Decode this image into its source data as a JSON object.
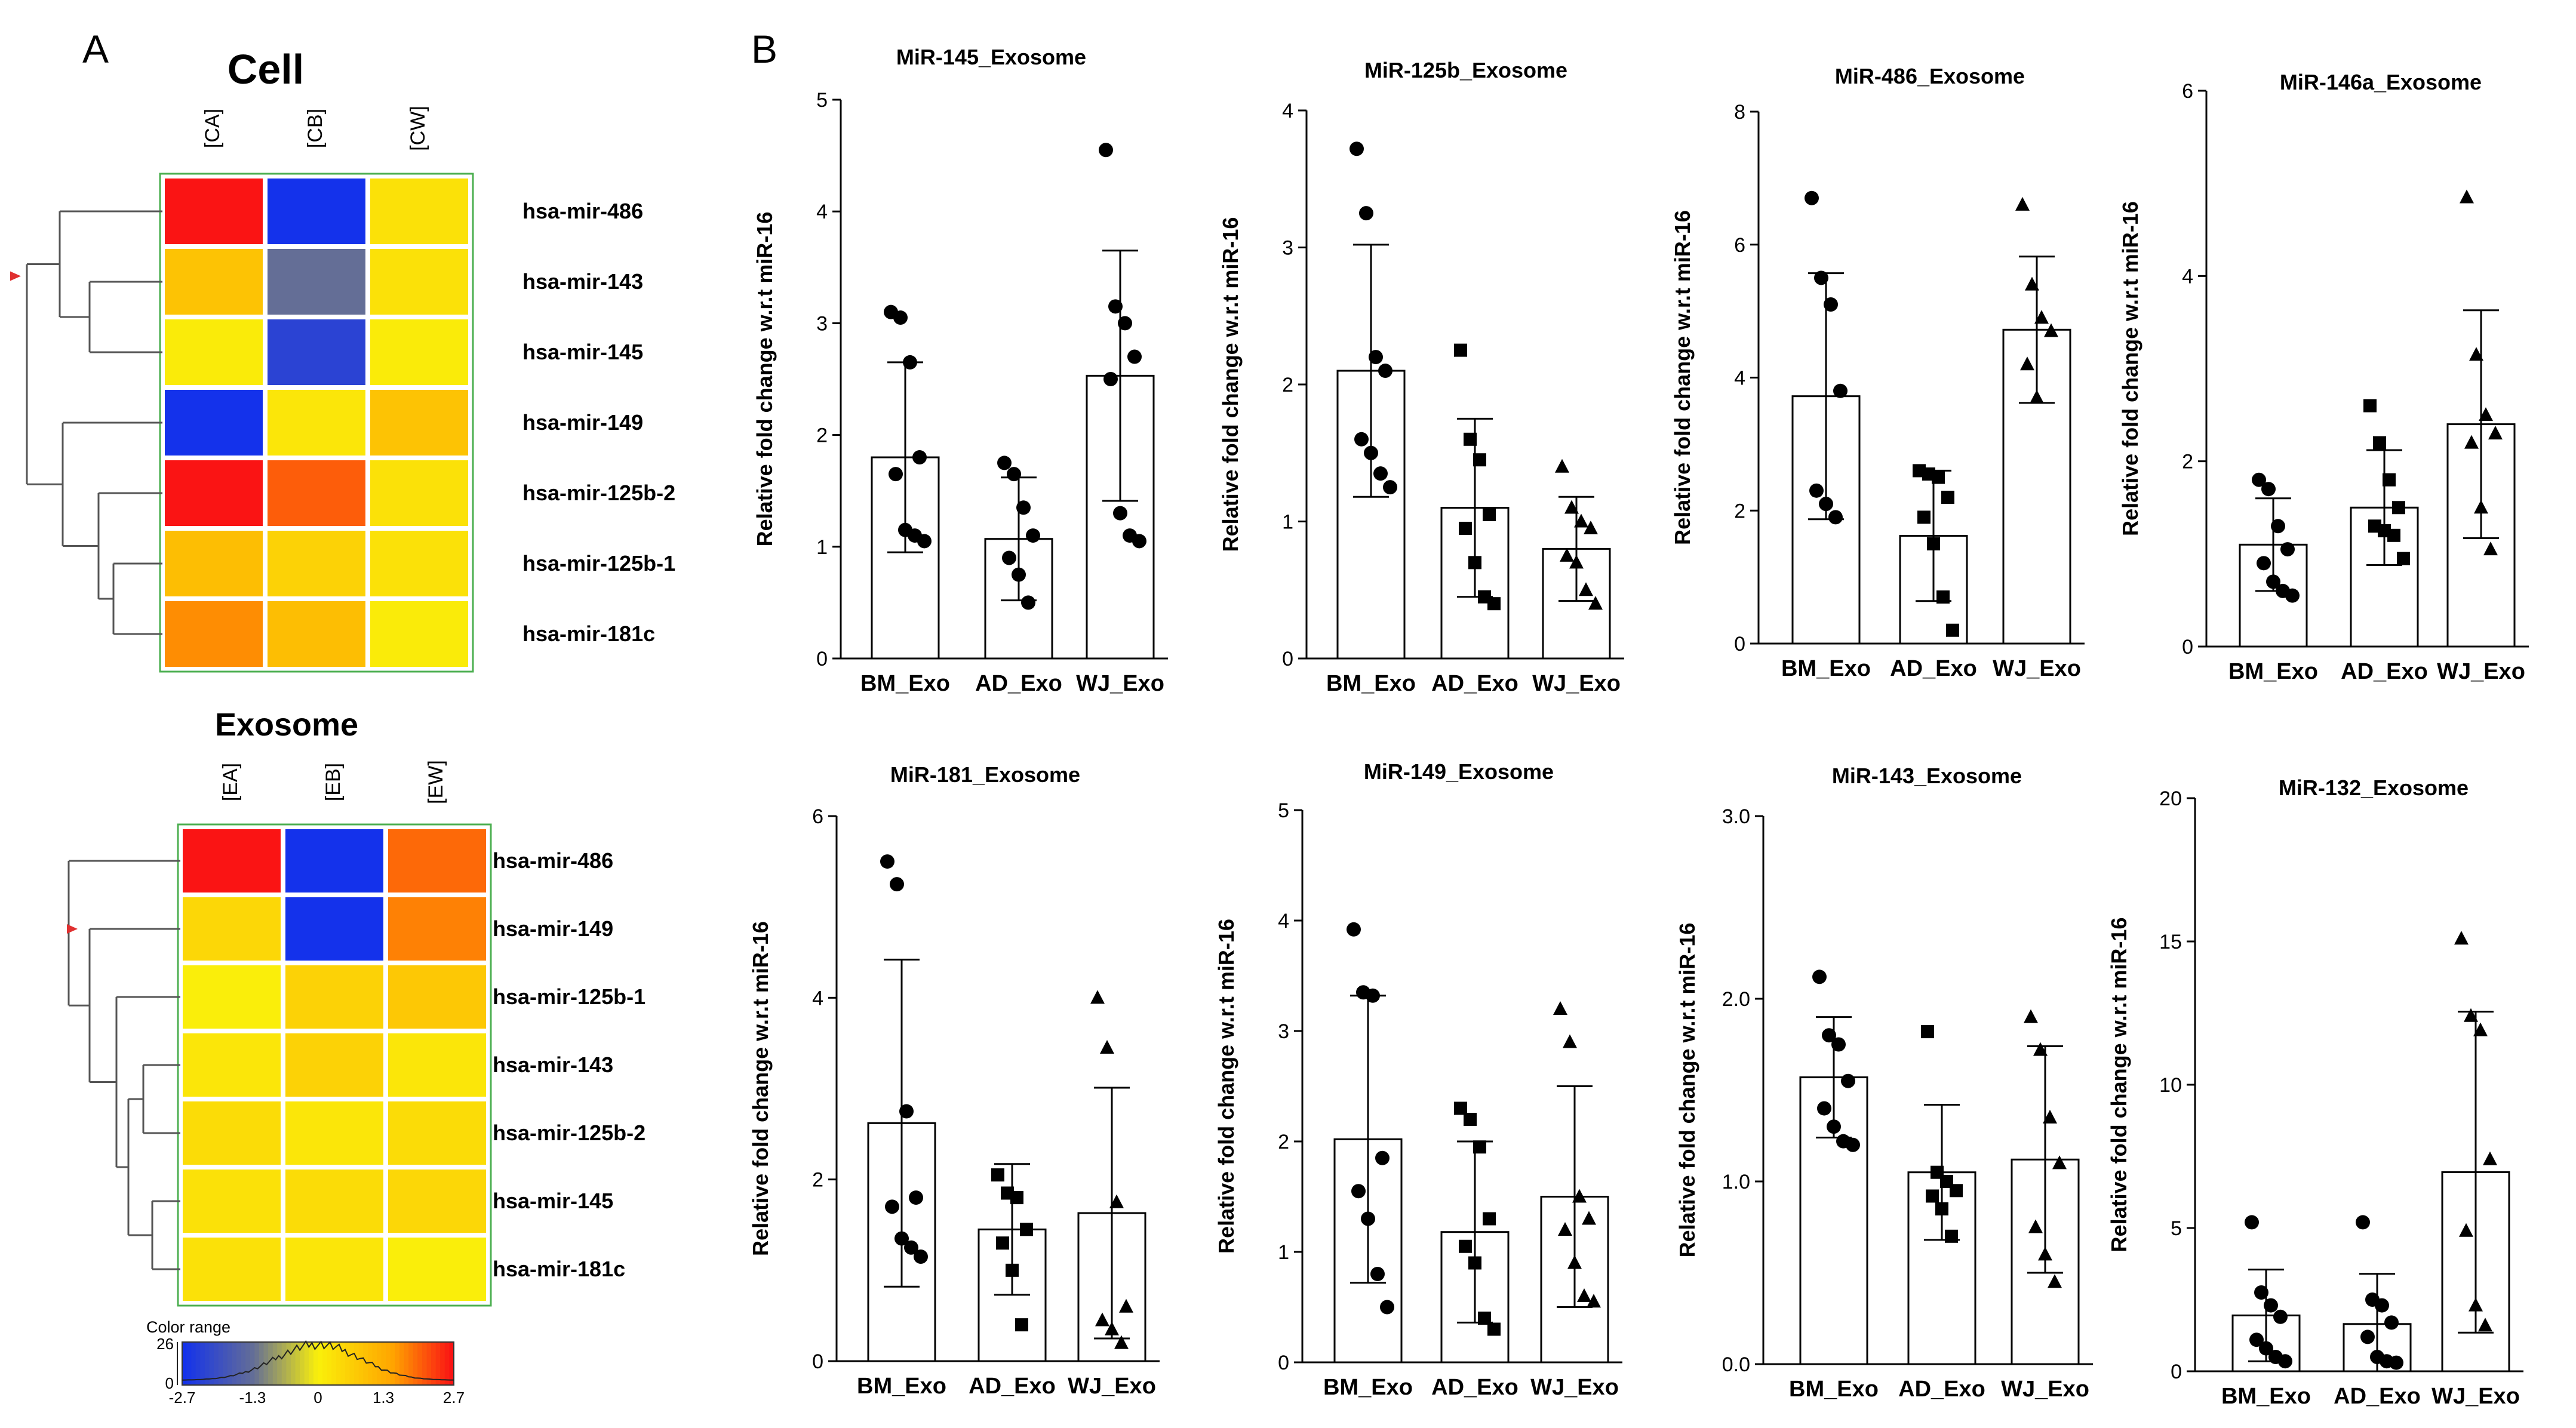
{
  "panel_labels": {
    "a": "A",
    "b": "B"
  },
  "chart_data": [
    {
      "type": "heatmap",
      "title": "Cell",
      "columns": [
        "[CA]",
        "[CB]",
        "[CW]"
      ],
      "rows": [
        "hsa-mir-486",
        "hsa-mir-143",
        "hsa-mir-145",
        "hsa-mir-149",
        "hsa-mir-125b-2",
        "hsa-mir-125b-1",
        "hsa-mir-181c"
      ],
      "values": [
        [
          2.7,
          -2.7,
          0.3
        ],
        [
          0.9,
          -1.3,
          0.3
        ],
        [
          0.1,
          -2.3,
          0.1
        ],
        [
          -2.7,
          0.2,
          0.9
        ],
        [
          2.7,
          2.1,
          0.3
        ],
        [
          1.0,
          0.6,
          0.3
        ],
        [
          1.7,
          1.0,
          0.1
        ]
      ]
    },
    {
      "type": "heatmap",
      "title": "Exosome",
      "columns": [
        "[EA]",
        "[EB]",
        "[EW]"
      ],
      "rows": [
        "hsa-mir-486",
        "hsa-mir-149",
        "hsa-mir-125b-1",
        "hsa-mir-143",
        "hsa-mir-125b-2",
        "hsa-mir-145",
        "hsa-mir-181c"
      ],
      "values": [
        [
          2.7,
          -2.7,
          2.0
        ],
        [
          0.5,
          -2.7,
          1.8
        ],
        [
          0.05,
          0.6,
          0.8
        ],
        [
          0.2,
          0.6,
          0.2
        ],
        [
          0.4,
          0.2,
          0.4
        ],
        [
          0.3,
          0.4,
          0.5
        ],
        [
          0.3,
          0.2,
          0.05
        ]
      ]
    },
    {
      "type": "colorbar",
      "title": "Color range",
      "ymax_label": "26",
      "ymin_label": "0",
      "ticks": [
        "-2.7",
        "-1.3",
        "0",
        "1.3",
        "2.7"
      ],
      "range": [
        -2.7,
        2.7
      ]
    },
    {
      "type": "bar",
      "title": "MiR-145_Exosome",
      "ylabel": "Relative fold change w.r.t miR-16",
      "categories": [
        "BM_Exo",
        "AD_Exo",
        "WJ_Exo"
      ],
      "ylim": [
        0,
        5
      ],
      "yticks": [
        0,
        1,
        2,
        3,
        4,
        5
      ],
      "ytick_labels": [
        "0",
        "1",
        "2",
        "3",
        "4",
        "5"
      ],
      "marker": [
        "circle",
        "circle",
        "circle"
      ],
      "means": [
        1.8,
        1.07,
        2.53
      ],
      "sd": [
        0.85,
        0.55,
        1.12
      ],
      "points": [
        [
          3.1,
          3.05,
          2.65,
          1.8,
          1.65,
          1.15,
          1.1,
          1.05
        ],
        [
          1.75,
          1.65,
          1.35,
          1.1,
          0.9,
          0.75,
          0.5
        ],
        [
          4.55,
          3.15,
          3.0,
          2.7,
          2.5,
          1.3,
          1.1,
          1.05
        ]
      ]
    },
    {
      "type": "bar",
      "title": "MiR-125b_Exosome",
      "ylabel": "Relative fold change w.r.t miR-16",
      "categories": [
        "BM_Exo",
        "AD_Exo",
        "WJ_Exo"
      ],
      "ylim": [
        0,
        4
      ],
      "yticks": [
        0,
        1,
        2,
        3,
        4
      ],
      "ytick_labels": [
        "0",
        "1",
        "2",
        "3",
        "4"
      ],
      "marker": [
        "circle",
        "square",
        "triangle"
      ],
      "means": [
        2.1,
        1.1,
        0.8
      ],
      "sd": [
        0.92,
        0.65,
        0.38
      ],
      "points": [
        [
          3.72,
          3.25,
          2.2,
          2.1,
          1.6,
          1.5,
          1.35,
          1.25
        ],
        [
          2.25,
          1.6,
          1.45,
          1.05,
          0.95,
          0.7,
          0.45,
          0.4
        ],
        [
          1.4,
          1.1,
          1.0,
          0.95,
          0.75,
          0.7,
          0.5,
          0.4
        ]
      ]
    },
    {
      "type": "bar",
      "title": "MiR-486_Exosome",
      "ylabel": "Relative fold change w.r.t miR-16",
      "categories": [
        "BM_Exo",
        "AD_Exo",
        "WJ_Exo"
      ],
      "ylim": [
        0,
        8
      ],
      "yticks": [
        0,
        2,
        4,
        6,
        8
      ],
      "ytick_labels": [
        "0",
        "2",
        "4",
        "6",
        "8"
      ],
      "marker": [
        "circle",
        "square",
        "triangle"
      ],
      "means": [
        3.72,
        1.62,
        4.72
      ],
      "sd": [
        1.85,
        0.98,
        1.1
      ],
      "points": [
        [
          6.7,
          5.5,
          5.1,
          3.8,
          2.3,
          2.1,
          1.9
        ],
        [
          2.6,
          2.55,
          2.5,
          2.2,
          1.9,
          1.5,
          0.7,
          0.2
        ],
        [
          6.6,
          5.4,
          4.9,
          4.7,
          4.2,
          3.7
        ]
      ]
    },
    {
      "type": "bar",
      "title": "MiR-146a_Exosome",
      "ylabel": "Relative fold change w.r.t miR-16",
      "categories": [
        "BM_Exo",
        "AD_Exo",
        "WJ_Exo"
      ],
      "ylim": [
        0,
        6
      ],
      "yticks": [
        0,
        2,
        4,
        6
      ],
      "ytick_labels": [
        "0",
        "2",
        "4",
        "6"
      ],
      "marker": [
        "circle",
        "square",
        "triangle"
      ],
      "means": [
        1.1,
        1.5,
        2.4
      ],
      "sd": [
        0.5,
        0.62,
        1.23
      ],
      "points": [
        [
          1.8,
          1.7,
          1.3,
          1.05,
          0.9,
          0.7,
          0.6,
          0.55
        ],
        [
          2.6,
          2.2,
          1.8,
          1.5,
          1.3,
          1.25,
          1.2,
          0.95
        ],
        [
          4.85,
          3.15,
          2.5,
          2.3,
          2.2,
          1.5,
          1.05
        ]
      ]
    },
    {
      "type": "bar",
      "title": "MiR-181_Exosome",
      "ylabel": "Relative fold change w.r.t miR-16",
      "categories": [
        "BM_Exo",
        "AD_Exo",
        "WJ_Exo"
      ],
      "ylim": [
        0,
        6
      ],
      "yticks": [
        0,
        2,
        4,
        6
      ],
      "ytick_labels": [
        "0",
        "2",
        "4",
        "6"
      ],
      "marker": [
        "circle",
        "square",
        "triangle"
      ],
      "means": [
        2.62,
        1.45,
        1.63
      ],
      "sd": [
        1.8,
        0.72,
        1.38
      ],
      "points": [
        [
          5.5,
          5.25,
          2.75,
          1.8,
          1.7,
          1.35,
          1.25,
          1.15
        ],
        [
          2.05,
          1.85,
          1.8,
          1.45,
          1.3,
          1.0,
          0.4
        ],
        [
          4.0,
          3.45,
          1.75,
          0.6,
          0.45,
          0.35,
          0.2
        ]
      ]
    },
    {
      "type": "bar",
      "title": "MiR-149_Exosome",
      "ylabel": "Relative fold change w.r.t miR-16",
      "categories": [
        "BM_Exo",
        "AD_Exo",
        "WJ_Exo"
      ],
      "ylim": [
        0,
        5
      ],
      "yticks": [
        0,
        1,
        2,
        3,
        4,
        5
      ],
      "ytick_labels": [
        "0",
        "1",
        "2",
        "3",
        "4",
        "5"
      ],
      "marker": [
        "circle",
        "square",
        "triangle"
      ],
      "means": [
        2.02,
        1.18,
        1.5
      ],
      "sd": [
        1.3,
        0.82,
        1.0
      ],
      "points": [
        [
          3.92,
          3.35,
          3.32,
          1.85,
          1.55,
          1.3,
          0.8,
          0.5
        ],
        [
          2.3,
          2.2,
          1.95,
          1.3,
          1.05,
          0.9,
          0.4,
          0.3
        ],
        [
          3.2,
          2.9,
          1.5,
          1.3,
          1.2,
          0.9,
          0.6,
          0.55
        ]
      ]
    },
    {
      "type": "bar",
      "title": "MiR-143_Exosome",
      "ylabel": "Relative fold change w.r.t miR-16",
      "categories": [
        "BM_Exo",
        "AD_Exo",
        "WJ_Exo"
      ],
      "ylim": [
        0,
        3
      ],
      "yticks": [
        0,
        1,
        2,
        3
      ],
      "ytick_labels": [
        "0.0",
        "1.0",
        "2.0",
        "3.0"
      ],
      "marker": [
        "circle",
        "square",
        "triangle"
      ],
      "means": [
        1.57,
        1.05,
        1.12
      ],
      "sd": [
        0.33,
        0.37,
        0.62
      ],
      "points": [
        [
          2.12,
          1.8,
          1.75,
          1.55,
          1.4,
          1.3,
          1.22,
          1.2
        ],
        [
          1.82,
          1.05,
          1.0,
          0.95,
          0.92,
          0.85,
          0.7
        ],
        [
          1.9,
          1.72,
          1.35,
          1.1,
          0.75,
          0.6,
          0.45
        ]
      ]
    },
    {
      "type": "bar",
      "title": "MiR-132_Exosome",
      "ylabel": "Relative fold change w.r.t miR-16",
      "categories": [
        "BM_Exo",
        "AD_Exo",
        "WJ_Exo"
      ],
      "ylim": [
        0,
        20
      ],
      "yticks": [
        0,
        5,
        10,
        15,
        20
      ],
      "ytick_labels": [
        "0",
        "5",
        "10",
        "15",
        "20"
      ],
      "marker": [
        "circle",
        "circle",
        "triangle"
      ],
      "means": [
        1.95,
        1.65,
        6.95
      ],
      "sd": [
        1.6,
        1.75,
        5.6
      ],
      "points": [
        [
          5.2,
          2.75,
          2.3,
          1.9,
          1.1,
          0.8,
          0.5,
          0.35
        ],
        [
          5.2,
          2.5,
          2.3,
          1.7,
          1.2,
          0.5,
          0.35,
          0.3
        ],
        [
          15.1,
          12.4,
          11.9,
          7.4,
          4.9,
          2.3,
          1.6
        ]
      ]
    }
  ]
}
